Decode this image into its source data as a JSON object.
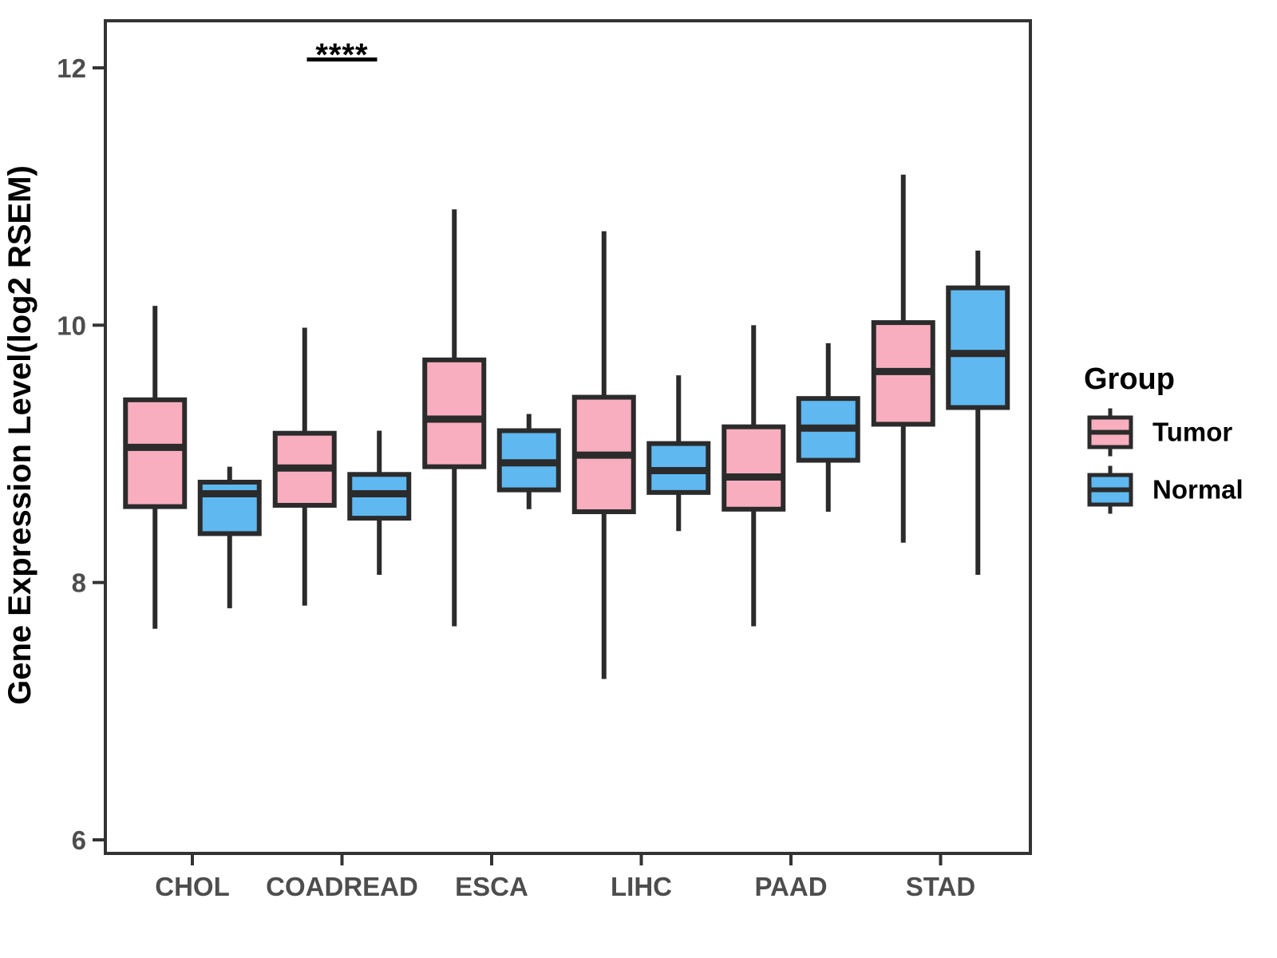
{
  "chart_data": {
    "type": "boxplot",
    "title": "",
    "xlabel": "",
    "y_axis": {
      "label": "Gene Expression Level(log2 RSEM)",
      "ticks": [
        6,
        8,
        10,
        12
      ],
      "range": [
        5.7,
        12.3
      ]
    },
    "categories": [
      "CHOL",
      "COADREAD",
      "ESCA",
      "LIHC",
      "PAAD",
      "STAD"
    ],
    "legend": {
      "title": "Group",
      "position": "right"
    },
    "series": [
      {
        "name": "Tumor",
        "color": "#F8AEBE",
        "boxes": [
          {
            "category": "CHOL",
            "min": 7.64,
            "q1": 8.59,
            "median": 9.05,
            "q3": 9.42,
            "max": 10.15
          },
          {
            "category": "COADREAD",
            "min": 7.82,
            "q1": 8.6,
            "median": 8.89,
            "q3": 9.16,
            "max": 9.98
          },
          {
            "category": "ESCA",
            "min": 7.66,
            "q1": 8.9,
            "median": 9.27,
            "q3": 9.73,
            "max": 10.9
          },
          {
            "category": "LIHC",
            "min": 7.25,
            "q1": 8.55,
            "median": 8.99,
            "q3": 9.44,
            "max": 10.73
          },
          {
            "category": "PAAD",
            "min": 7.66,
            "q1": 8.57,
            "median": 8.82,
            "q3": 9.21,
            "max": 10.0
          },
          {
            "category": "STAD",
            "min": 8.31,
            "q1": 9.23,
            "median": 9.64,
            "q3": 10.02,
            "max": 11.17
          }
        ]
      },
      {
        "name": "Normal",
        "color": "#5FB8F0",
        "boxes": [
          {
            "category": "CHOL",
            "min": 7.8,
            "q1": 8.38,
            "median": 8.69,
            "q3": 8.78,
            "max": 8.9
          },
          {
            "category": "COADREAD",
            "min": 8.06,
            "q1": 8.5,
            "median": 8.69,
            "q3": 8.84,
            "max": 9.18
          },
          {
            "category": "ESCA",
            "min": 8.57,
            "q1": 8.72,
            "median": 8.93,
            "q3": 9.18,
            "max": 9.31
          },
          {
            "category": "LIHC",
            "min": 8.4,
            "q1": 8.7,
            "median": 8.87,
            "q3": 9.08,
            "max": 9.61
          },
          {
            "category": "PAAD",
            "min": 8.55,
            "q1": 8.95,
            "median": 9.2,
            "q3": 9.43,
            "max": 9.86
          },
          {
            "category": "STAD",
            "min": 8.06,
            "q1": 9.36,
            "median": 9.78,
            "q3": 10.29,
            "max": 10.58
          }
        ]
      }
    ],
    "annotation": {
      "text": "****",
      "category": "COADREAD"
    },
    "colors": {
      "tumor_fill": "#F8AEBE",
      "normal_fill": "#5FB8F0",
      "box_stroke": "#2B2B2B",
      "panel_border": "#333333",
      "tick_mark": "#333333",
      "tick_label": "#4D4D4D",
      "axis_title": "#000000",
      "annotation": "#000000",
      "background": "#FFFFFF"
    },
    "legend_position": "right",
    "grid": "off"
  }
}
